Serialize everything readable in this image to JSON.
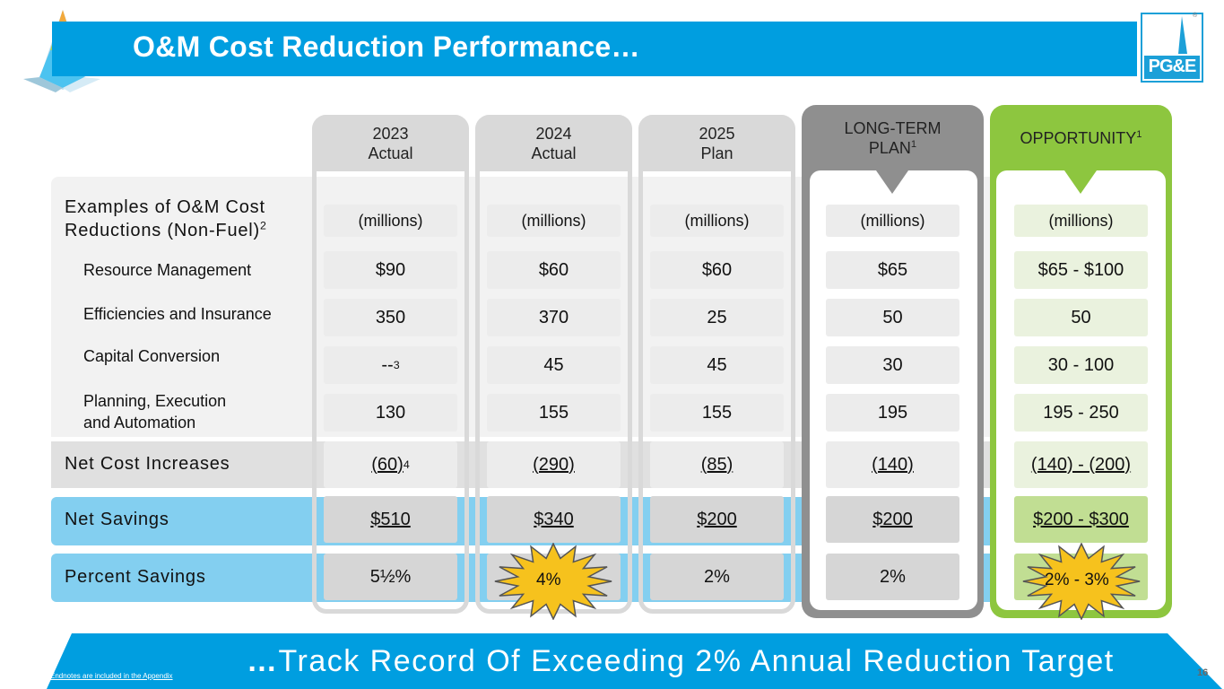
{
  "header": {
    "title": "O&M Cost Reduction Performance…",
    "logo_text": "PG&E",
    "logo_mark": "®"
  },
  "columns": [
    {
      "line1": "2023",
      "line2": "Actual"
    },
    {
      "line1": "2024",
      "line2": "Actual"
    },
    {
      "line1": "2025",
      "line2": "Plan"
    },
    {
      "line1": "LONG-TERM",
      "line2": "PLAN",
      "sup": "1"
    },
    {
      "line1": "OPPORTUNITY",
      "sup": "1"
    }
  ],
  "rows": {
    "examples_label_line1": "Examples of O&M Cost",
    "examples_label_line2": "Reductions (Non-Fuel)",
    "examples_label_sup": "2",
    "resource_management": "Resource Management",
    "efficiencies_insurance": "Efficiencies and Insurance",
    "capital_conversion": "Capital Conversion",
    "planning_line1": "Planning, Execution",
    "planning_line2": "and Automation",
    "net_cost_increases": "Net Cost Increases",
    "net_savings": "Net Savings",
    "percent_savings": "Percent Savings"
  },
  "values": {
    "units": "(millions)",
    "c2023": {
      "resource": "$90",
      "efficiencies": "350",
      "capital": "--",
      "capital_sup": "3",
      "planning": "130",
      "net_cost": "(60)",
      "net_cost_sup": "4",
      "net_savings": "$510",
      "percent": "5½%"
    },
    "c2024": {
      "resource": "$60",
      "efficiencies": "370",
      "capital": "45",
      "planning": "155",
      "net_cost": "(290)",
      "net_savings": "$340",
      "percent": "4%"
    },
    "c2025": {
      "resource": "$60",
      "efficiencies": "25",
      "capital": "45",
      "planning": "155",
      "net_cost": "(85)",
      "net_savings": "$200",
      "percent": "2%"
    },
    "long_term": {
      "resource": "$65",
      "efficiencies": "50",
      "capital": "30",
      "planning": "195",
      "net_cost": "(140)",
      "net_savings": "$200",
      "percent": "2%"
    },
    "opportunity": {
      "resource": "$65 - $100",
      "efficiencies": "50",
      "capital": "30 - 100",
      "planning": "195 - 250",
      "net_cost": "(140) - (200)",
      "net_savings": "$200 - $300",
      "percent": "2% - 3%"
    }
  },
  "footer": {
    "lead": "…",
    "tagline": "Track Record Of Exceeding 2% Annual Reduction Target",
    "endnotes": "Endnotes are included in the Appendix",
    "page_number": "16"
  },
  "colors": {
    "brand_blue": "#009ee0",
    "light_blue": "#83cff0",
    "green": "#8dc63f",
    "highlight_yellow": "#f6c21d"
  }
}
